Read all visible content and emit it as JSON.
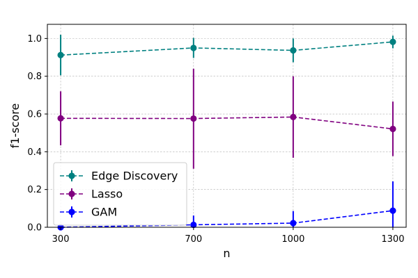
{
  "chart_data": {
    "type": "line",
    "title": "",
    "xlabel": "n",
    "ylabel": "f1-score",
    "x": [
      300,
      700,
      1000,
      1300
    ],
    "x_tick_labels": [
      "300",
      "700",
      "1000",
      "1300"
    ],
    "xlim": [
      260,
      1340
    ],
    "ylim": [
      0.0,
      1.075
    ],
    "y_ticks": [
      0.0,
      0.2,
      0.4,
      0.6,
      0.8,
      1.0
    ],
    "y_tick_labels": [
      "0.0",
      "0.2",
      "0.4",
      "0.6",
      "0.8",
      "1.0"
    ],
    "grid": true,
    "legend_position": "lower-left",
    "series": [
      {
        "name": "Edge Discovery",
        "color": "#008080",
        "values": [
          0.912,
          0.95,
          0.937,
          0.982
        ],
        "err_low": [
          0.805,
          0.897,
          0.874,
          0.948
        ],
        "err_high": [
          1.02,
          1.003,
          1.0,
          1.015
        ]
      },
      {
        "name": "Lasso",
        "color": "#800080",
        "values": [
          0.577,
          0.576,
          0.584,
          0.521
        ],
        "err_low": [
          0.434,
          0.31,
          0.368,
          0.377
        ],
        "err_high": [
          0.72,
          0.84,
          0.8,
          0.666
        ]
      },
      {
        "name": "GAM",
        "color": "#0000ff",
        "values": [
          0.0,
          0.013,
          0.022,
          0.088
        ],
        "err_low": [
          0.0,
          0.0,
          0.0,
          0.0
        ],
        "err_high": [
          0.0,
          0.062,
          0.086,
          0.243
        ]
      }
    ]
  }
}
